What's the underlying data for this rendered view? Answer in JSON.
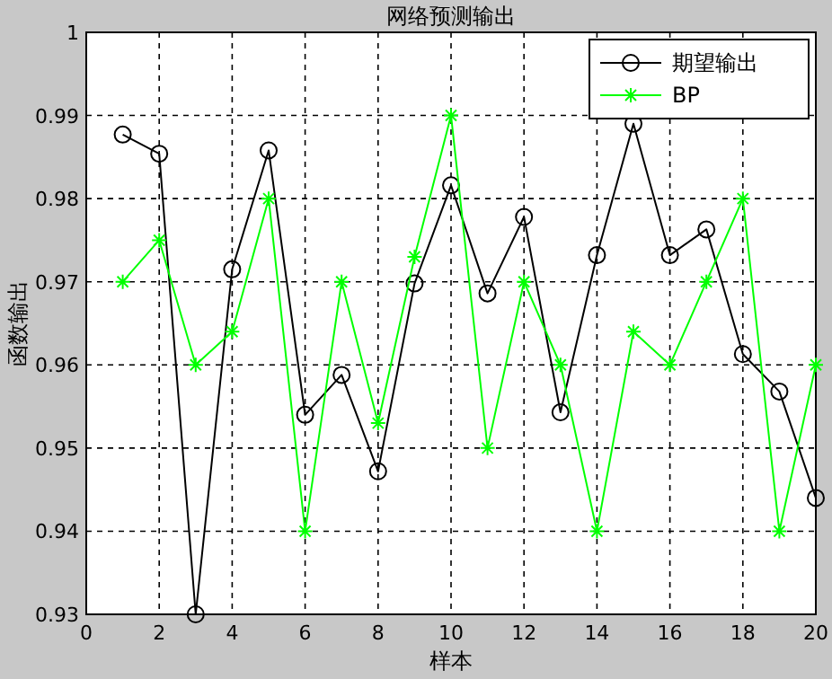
{
  "chart_data": {
    "type": "line",
    "title": "网络预测输出",
    "xlabel": "样本",
    "ylabel": "函数输出",
    "x": [
      1,
      2,
      3,
      4,
      5,
      6,
      7,
      8,
      9,
      10,
      11,
      12,
      13,
      14,
      15,
      16,
      17,
      18,
      19,
      20
    ],
    "series": [
      {
        "name": "期望输出",
        "color": "#000000",
        "marker": "circle",
        "values": [
          0.9877,
          0.9854,
          0.93,
          0.9715,
          0.9858,
          0.954,
          0.9588,
          0.9472,
          0.9698,
          0.9816,
          0.9686,
          0.9778,
          0.9543,
          0.9732,
          0.989,
          0.9732,
          0.9763,
          0.9613,
          0.9568,
          0.944
        ]
      },
      {
        "name": "BP",
        "color": "#00ff00",
        "marker": "cross",
        "values": [
          0.97,
          0.975,
          0.96,
          0.964,
          0.98,
          0.94,
          0.97,
          0.953,
          0.973,
          0.99,
          0.95,
          0.97,
          0.96,
          0.94,
          0.964,
          0.96,
          0.97,
          0.98,
          0.94,
          0.96
        ]
      }
    ],
    "xlim": [
      0,
      20
    ],
    "xticks": [
      0,
      2,
      4,
      6,
      8,
      10,
      12,
      14,
      16,
      18,
      20
    ],
    "ylim": [
      0.93,
      1
    ],
    "yticks": [
      0.93,
      0.94,
      0.95,
      0.96,
      0.97,
      0.98,
      0.99,
      1
    ],
    "grid": true,
    "legend": "top right",
    "line_style": "solid"
  }
}
